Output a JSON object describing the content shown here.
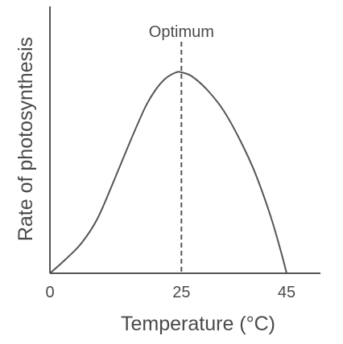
{
  "chart_data": {
    "type": "line",
    "title": "",
    "xlabel": "Temperature (°C)",
    "ylabel": "Rate of photosynthesis",
    "xlim": [
      0,
      48
    ],
    "ylim": [
      0,
      1
    ],
    "x_ticks": [
      "0",
      "25",
      "45"
    ],
    "y_ticks": [],
    "grid": false,
    "legend": "none",
    "series": [
      {
        "x": [
          0,
          3,
          6,
          9,
          12,
          15,
          18,
          20,
          22,
          24,
          25,
          27,
          30,
          33,
          36,
          39,
          42,
          44,
          45
        ],
        "y": [
          0,
          0.07,
          0.15,
          0.27,
          0.45,
          0.64,
          0.82,
          0.91,
          0.97,
          1.0,
          1.0,
          0.98,
          0.91,
          0.81,
          0.67,
          0.5,
          0.28,
          0.1,
          0
        ]
      }
    ],
    "annotations": [
      {
        "label": "Optimum",
        "x": 25,
        "style": "dashed-vertical-line"
      }
    ],
    "colors": {
      "line": "#555555",
      "axis": "#555555",
      "text": "#4a4a4a"
    }
  }
}
